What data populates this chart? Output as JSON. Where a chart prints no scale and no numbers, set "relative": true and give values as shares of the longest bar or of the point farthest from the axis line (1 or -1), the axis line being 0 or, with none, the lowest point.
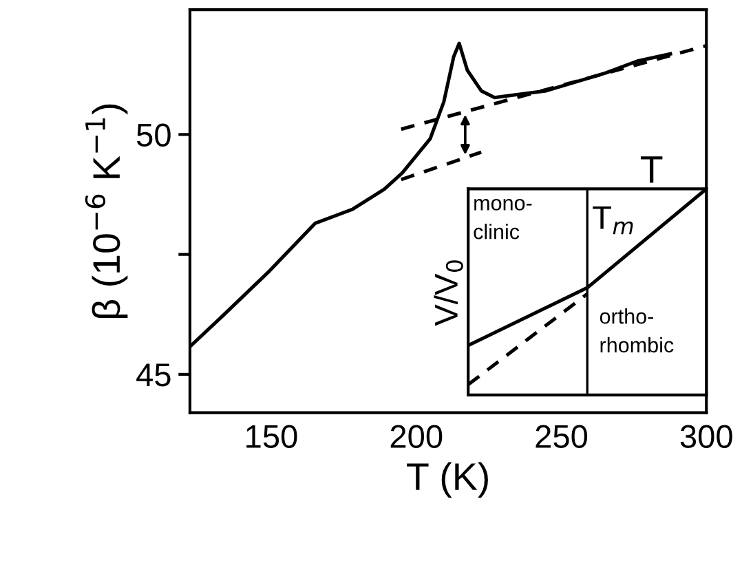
{
  "chart_data": [
    {
      "type": "line",
      "xlabel": "T (K)",
      "ylabel": "β (10$^{−6}$ K$^{−1}$)",
      "xlim": [
        122,
        300
      ],
      "ylim": [
        44.2,
        52.6
      ],
      "xticks": [
        150,
        200,
        250,
        300
      ],
      "yticks": [
        45,
        {
          "value": 47.5,
          "label": null
        },
        50
      ],
      "series": [
        {
          "color": "#000000",
          "line_style": "solid",
          "x": [
            122.4,
            133.3,
            149.5,
            165.2,
            178,
            189,
            195.2,
            204.8,
            209.5,
            212.9,
            214.8,
            217.6,
            222.4,
            227,
            244.8,
            265.2,
            276.2,
            287.6
          ],
          "values": [
            45.6,
            46.22,
            47.16,
            48.15,
            48.44,
            48.86,
            49.2,
            49.91,
            50.68,
            51.62,
            51.9,
            51.34,
            50.91,
            50.77,
            50.91,
            51.28,
            51.53,
            51.68
          ]
        },
        {
          "color": "#000000",
          "line_style": "dashed",
          "x": [
            194.8,
            300
          ],
          "values": [
            50.11,
            51.85
          ]
        },
        {
          "color": "#000000",
          "line_style": "dashed",
          "x": [
            194.8,
            222.4
          ],
          "values": [
            49.06,
            49.63
          ]
        }
      ]
    },
    {
      "type": "line",
      "relative": true,
      "xlabel": "T",
      "ylabel": "V/V$_{0}$",
      "categories": [
        null,
        null,
        null
      ],
      "series": [
        {
          "color": "#000000",
          "line_style": "solid",
          "values": [
            0.24,
            0.52,
            1.0
          ]
        },
        {
          "color": "#000000",
          "line_style": "dashed",
          "values": [
            0.05,
            0.49,
            null
          ]
        }
      ],
      "annotations": [
        "mono-\nclinic",
        "T$_{m}$",
        "ortho-\nrhombic"
      ]
    }
  ]
}
